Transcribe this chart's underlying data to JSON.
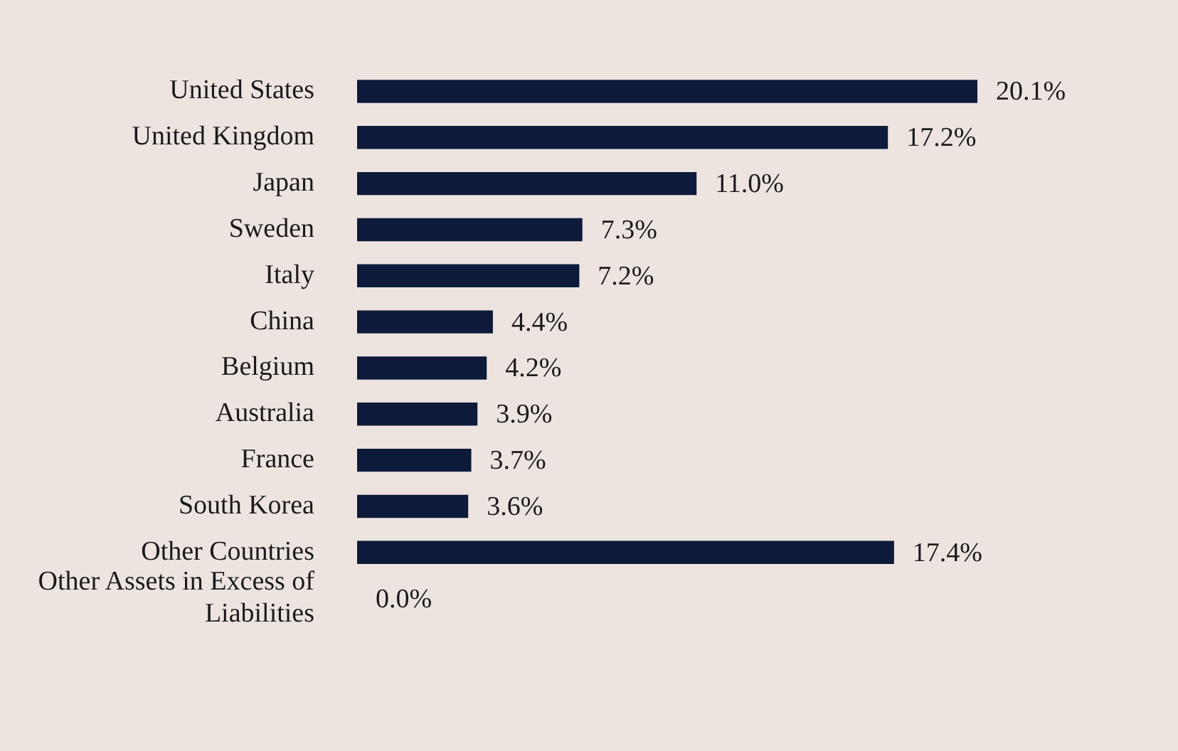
{
  "chart_data": {
    "type": "bar",
    "orientation": "horizontal",
    "categories": [
      "United States",
      "United Kingdom",
      "Japan",
      "Sweden",
      "Italy",
      "China",
      "Belgium",
      "Australia",
      "France",
      "South Korea",
      "Other Countries",
      "Other Assets in Excess of Liabilities"
    ],
    "values": [
      20.1,
      17.2,
      11.0,
      7.3,
      7.2,
      4.4,
      4.2,
      3.9,
      3.7,
      3.6,
      17.4,
      0.0
    ],
    "value_labels": [
      "20.1%",
      "17.2%",
      "11.0%",
      "7.3%",
      "7.2%",
      "4.4%",
      "4.2%",
      "3.9%",
      "3.7%",
      "3.6%",
      "17.4%",
      "0.0%"
    ],
    "color": "#0d1a3a",
    "legend": false
  }
}
